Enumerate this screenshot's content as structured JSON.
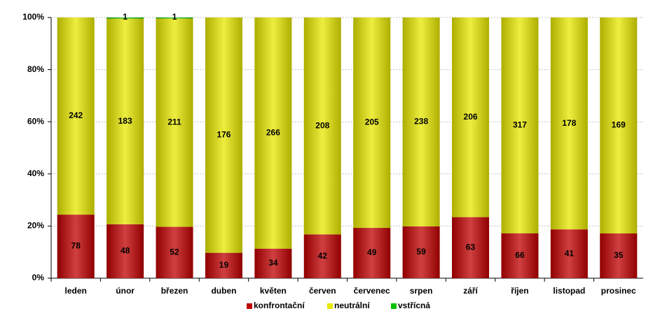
{
  "chart_data": {
    "type": "bar",
    "stacking": "percent",
    "categories": [
      "leden",
      "únor",
      "březen",
      "duben",
      "květen",
      "červen",
      "červenec",
      "srpen",
      "září",
      "říjen",
      "listopad",
      "prosinec"
    ],
    "series": [
      {
        "name": "konfrontační",
        "color": "#c00000",
        "values": [
          78,
          48,
          52,
          19,
          34,
          42,
          49,
          59,
          63,
          66,
          41,
          35
        ]
      },
      {
        "name": "neutrální",
        "color": "#e8e800",
        "values": [
          242,
          183,
          211,
          176,
          266,
          208,
          205,
          238,
          206,
          317,
          178,
          169
        ]
      },
      {
        "name": "vstřícná",
        "color": "#00c000",
        "values": [
          null,
          1,
          1,
          null,
          null,
          null,
          null,
          null,
          null,
          null,
          null,
          null
        ]
      }
    ],
    "ylim": [
      0,
      100
    ],
    "yticks": [
      {
        "value": 0,
        "label": "0%"
      },
      {
        "value": 20,
        "label": "20%"
      },
      {
        "value": 40,
        "label": "40%"
      },
      {
        "value": 60,
        "label": "60%"
      },
      {
        "value": 80,
        "label": "80%"
      },
      {
        "value": 100,
        "label": "100%"
      }
    ],
    "grid": true,
    "legend": "bottom"
  }
}
